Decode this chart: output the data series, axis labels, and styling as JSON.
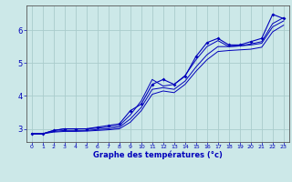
{
  "xlabel": "Graphe des températures (°c)",
  "xlim": [
    -0.5,
    23.5
  ],
  "ylim": [
    2.6,
    6.75
  ],
  "yticks": [
    3,
    4,
    5,
    6
  ],
  "xticks": [
    0,
    1,
    2,
    3,
    4,
    5,
    6,
    7,
    8,
    9,
    10,
    11,
    12,
    13,
    14,
    15,
    16,
    17,
    18,
    19,
    20,
    21,
    22,
    23
  ],
  "bg_color": "#cce8e8",
  "grid_color": "#aacccc",
  "line_color": "#0000bb",
  "line1_y": [
    2.85,
    2.85,
    2.9,
    2.92,
    2.92,
    2.93,
    2.95,
    2.97,
    3.0,
    3.2,
    3.55,
    4.05,
    4.15,
    4.1,
    4.35,
    4.75,
    5.1,
    5.35,
    5.38,
    5.4,
    5.42,
    5.48,
    5.95,
    6.15
  ],
  "line2_y": [
    2.85,
    2.85,
    2.92,
    2.95,
    2.95,
    2.95,
    2.98,
    3.0,
    3.05,
    3.3,
    3.65,
    4.2,
    4.25,
    4.2,
    4.45,
    4.88,
    5.25,
    5.5,
    5.5,
    5.52,
    5.55,
    5.6,
    6.1,
    6.28
  ],
  "line3_y": [
    2.85,
    2.85,
    2.95,
    3.0,
    3.0,
    3.0,
    3.02,
    3.05,
    3.1,
    3.42,
    3.85,
    4.5,
    4.3,
    4.35,
    4.62,
    5.1,
    5.5,
    5.68,
    5.5,
    5.52,
    5.58,
    5.65,
    6.2,
    6.38
  ],
  "scatter_y": [
    2.85,
    2.85,
    2.95,
    3.0,
    3.0,
    3.0,
    3.05,
    3.1,
    3.15,
    3.55,
    3.75,
    4.35,
    4.5,
    4.35,
    4.6,
    5.2,
    5.62,
    5.75,
    5.55,
    5.55,
    5.65,
    5.75,
    6.48,
    6.35
  ],
  "figsize": [
    3.2,
    2.0
  ],
  "dpi": 100
}
